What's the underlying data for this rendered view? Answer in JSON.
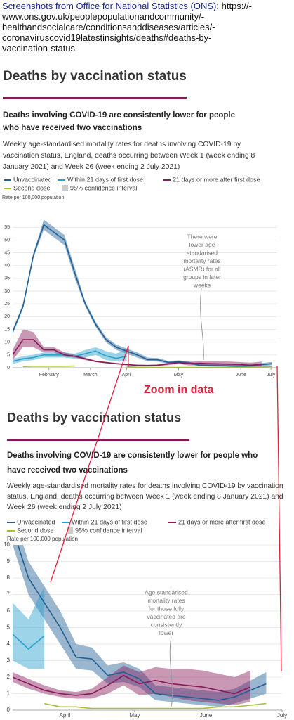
{
  "header": {
    "source": "Screenshots from Office for National Statistics (ONS)",
    "url_lines": [
      ": https://-",
      "www.ons.gov.uk/peoplepopulationandcommunity/-",
      "healthandsocialcare/conditionsanddiseases/articles/-",
      "coronaviruscovid19latestinsights/deaths#deaths-by-",
      "vaccination-status"
    ]
  },
  "zoom_label": "Zoom in data",
  "chart_data": [
    {
      "type": "line",
      "title": "Deaths by vaccination status",
      "subtitle": "Deaths involving COVID-19 are consistently lower for people who have received two vaccinations",
      "description": "Weekly age-standardised mortality rates for deaths involving COVID-19 by vaccination status, England, deaths occurring between Week 1 (week ending 8 January 2021) and Week 26 (week ending 2 July 2021)",
      "y_label": "Rate per 100,000 population",
      "ci_label": "95% confidence interval",
      "ci_color": "#cccccc",
      "annotation_lines": [
        "There were",
        "lower age",
        "standarised",
        "mortality rates",
        "(ASMR) for all",
        "groups in later",
        "weeks"
      ],
      "x": [
        1,
        2,
        3,
        4,
        5,
        6,
        7,
        8,
        9,
        10,
        11,
        12,
        13,
        14,
        15,
        16,
        17,
        18,
        19,
        20,
        21,
        22,
        23,
        24,
        25,
        26
      ],
      "xlim": [
        1,
        26.5
      ],
      "xticks": [
        {
          "value": 4.5,
          "label": "February"
        },
        {
          "value": 8.5,
          "label": "March"
        },
        {
          "value": 12,
          "label": "April"
        },
        {
          "value": 17,
          "label": "May"
        },
        {
          "value": 23,
          "label": "June"
        },
        {
          "value": 25.9,
          "label": "July"
        }
      ],
      "ylim": [
        0,
        57
      ],
      "yticks": [
        0,
        5,
        10,
        15,
        20,
        25,
        30,
        35,
        40,
        45,
        50,
        55
      ],
      "grid": true,
      "series": [
        {
          "name": "Unvaccinated",
          "color": "#206095",
          "values": [
            14,
            24,
            44,
            56,
            53,
            50,
            37,
            25,
            17,
            11,
            8,
            6.5,
            5,
            3.2,
            3.1,
            2.1,
            2.3,
            1.9,
            1.0,
            0.9,
            0.8,
            0.7,
            0.6,
            0.8,
            1.2,
            1.6
          ],
          "lower": [
            13,
            23,
            43,
            54,
            51,
            48,
            35,
            24,
            16,
            10,
            7,
            5.5,
            4,
            2.5,
            2.4,
            1.6,
            1.7,
            1.4,
            0.6,
            0.5,
            0.4,
            0.3,
            0.2,
            0.4,
            0.7,
            1.0
          ],
          "upper": [
            15,
            25,
            45,
            58,
            55,
            52,
            39,
            26,
            18,
            12,
            9,
            7.5,
            6,
            4,
            3.8,
            2.7,
            2.9,
            2.5,
            1.5,
            1.4,
            1.3,
            1.2,
            1.1,
            1.3,
            1.8,
            2.3
          ]
        },
        {
          "name": "Within 21 days of first dose",
          "color": "#27a0cc",
          "values": [
            2.5,
            3.5,
            4,
            5,
            5,
            5,
            4.5,
            5.5,
            6.5,
            4.6,
            3.7,
            4.5,
            null,
            null,
            null,
            null,
            null,
            null,
            null,
            null,
            null,
            null,
            null,
            null,
            null,
            null
          ],
          "lower": [
            1.5,
            2.5,
            3,
            4,
            4,
            4,
            3.5,
            4,
            5,
            3,
            2.5,
            2.5,
            null,
            null,
            null,
            null,
            null,
            null,
            null,
            null,
            null,
            null,
            null,
            null,
            null,
            null
          ],
          "upper": [
            3.5,
            4.5,
            5,
            6,
            6,
            6,
            5.5,
            7,
            8,
            6.5,
            5.5,
            7.5,
            null,
            null,
            null,
            null,
            null,
            null,
            null,
            null,
            null,
            null,
            null,
            null,
            null,
            null
          ]
        },
        {
          "name": "21 days or more after first dose",
          "color": "#871a5b",
          "values": [
            5,
            11,
            11,
            7,
            7,
            5,
            4.5,
            3.5,
            2.5,
            2,
            1.6,
            1.2,
            1.0,
            0.9,
            1.0,
            1.5,
            2.1,
            1.6,
            1.8,
            1.6,
            1.5,
            1.4,
            1.2,
            1.0,
            1.4,
            null
          ],
          "lower": [
            3,
            8,
            8,
            6,
            6,
            4.3,
            4,
            3,
            2.2,
            1.7,
            1.3,
            1.0,
            0.8,
            0.7,
            0.7,
            1.0,
            1.5,
            0.9,
            1.0,
            0.8,
            0.6,
            0.5,
            0.4,
            0.3,
            0.5,
            null
          ],
          "upper": [
            7,
            15,
            14,
            8,
            8,
            6,
            5,
            4,
            2.8,
            2.3,
            1.9,
            1.5,
            1.2,
            1.1,
            1.3,
            2.0,
            2.7,
            2.3,
            2.6,
            2.5,
            2.5,
            2.4,
            2.2,
            2.0,
            2.4,
            null
          ]
        },
        {
          "name": "Second dose",
          "color": "#a8bd3a",
          "values": [
            null,
            0.5,
            0.6,
            0.6,
            0.6,
            0.6,
            0.7,
            null,
            null,
            null,
            null,
            0.4,
            0.2,
            0.2,
            0.1,
            0.1,
            0.1,
            0.1,
            0.1,
            0.1,
            0.1,
            0.1,
            0.2,
            0.2,
            0.3,
            0.4
          ]
        }
      ]
    },
    {
      "type": "line",
      "title": "Deaths by vaccination status",
      "subtitle": "Deaths involving COVID-19 are consistently lower for people who have received two vaccinations",
      "description": "Weekly age-standardised mortality rates for deaths involving COVID-19 by vaccination status, England, deaths occurring between Week 1 (week ending 8 January 2021) and Week 26 (week ending 2 July 2021)",
      "y_label": "Rate per 100,000 population",
      "ci_label": "95% confidence interval",
      "ci_color": "#cccccc",
      "annotation_lines": [
        "Age standarised",
        "mortality rates",
        "for those fully",
        "vaccinated are",
        "consistently",
        "lower"
      ],
      "x": [
        10,
        11,
        12,
        13,
        14,
        15,
        16,
        17,
        18,
        19,
        20,
        21,
        22,
        23,
        24,
        25,
        26
      ],
      "xlim": [
        10,
        27
      ],
      "xticks": [
        {
          "value": 13.3,
          "label": "April"
        },
        {
          "value": 17.7,
          "label": "May"
        },
        {
          "value": 22.2,
          "label": "June"
        },
        {
          "value": 27,
          "label": "July"
        }
      ],
      "ylim": [
        0,
        10
      ],
      "yticks": [
        0,
        1,
        2,
        3,
        4,
        5,
        6,
        7,
        8,
        9,
        10
      ],
      "grid": true,
      "series": [
        {
          "name": "Unvaccinated",
          "color": "#206095",
          "values": [
            11,
            8,
            6.5,
            5,
            3.2,
            3.1,
            2.1,
            2.3,
            1.9,
            1.0,
            0.9,
            0.8,
            0.7,
            0.6,
            0.8,
            1.2,
            1.6
          ],
          "lower": [
            10,
            7,
            5.5,
            4,
            2.5,
            2.4,
            1.6,
            1.7,
            1.4,
            0.6,
            0.5,
            0.4,
            0.3,
            0.2,
            0.4,
            0.7,
            1.0
          ],
          "upper": [
            12,
            9,
            7.5,
            6,
            4,
            3.8,
            2.7,
            2.9,
            2.5,
            1.5,
            1.4,
            1.3,
            1.2,
            1.1,
            1.3,
            1.8,
            2.3
          ]
        },
        {
          "name": "Within 21 days of first dose",
          "color": "#27a0cc",
          "values": [
            4.6,
            3.7,
            4.5,
            null,
            null,
            null,
            null,
            null,
            null,
            null,
            null,
            null,
            null,
            null,
            null,
            null,
            null
          ],
          "lower": [
            3,
            2.5,
            2.5,
            null,
            null,
            null,
            null,
            null,
            null,
            null,
            null,
            null,
            null,
            null,
            null,
            null,
            null
          ],
          "upper": [
            6.5,
            5.5,
            7.5,
            null,
            null,
            null,
            null,
            null,
            null,
            null,
            null,
            null,
            null,
            null,
            null,
            null,
            null
          ]
        },
        {
          "name": "21 days or more after first dose",
          "color": "#871a5b",
          "values": [
            2,
            1.6,
            1.2,
            1.0,
            0.9,
            1.0,
            1.5,
            2.1,
            1.6,
            1.8,
            1.6,
            1.5,
            1.4,
            1.2,
            1.0,
            1.4,
            null
          ],
          "lower": [
            1.7,
            1.3,
            1.0,
            0.8,
            0.7,
            0.7,
            1.0,
            1.5,
            0.9,
            1.0,
            0.8,
            0.6,
            0.5,
            0.4,
            0.3,
            0.5,
            null
          ],
          "upper": [
            2.3,
            1.9,
            1.5,
            1.2,
            1.1,
            1.3,
            2.0,
            2.7,
            2.3,
            2.6,
            2.5,
            2.5,
            2.4,
            2.2,
            2.0,
            2.4,
            null
          ]
        },
        {
          "name": "Second dose",
          "color": "#a8bd3a",
          "values": [
            null,
            null,
            0.4,
            0.2,
            0.2,
            0.1,
            0.1,
            0.1,
            0.1,
            0.1,
            0.1,
            0.1,
            0.1,
            0.2,
            0.2,
            0.3,
            0.4
          ]
        }
      ]
    }
  ]
}
